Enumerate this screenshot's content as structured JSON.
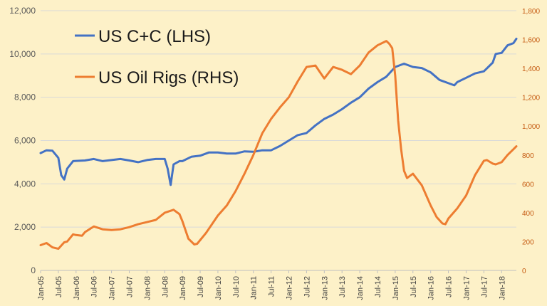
{
  "chart_data": {
    "type": "line",
    "legend_position": "top-left",
    "grid": true,
    "x_tick_labels": [
      "Jan-05",
      "Jul-05",
      "Jan-06",
      "Jul-06",
      "Jan-07",
      "Jul-07",
      "Jan-08",
      "Jul-08",
      "Jan-09",
      "Jul-09",
      "Jan-10",
      "Jul-10",
      "Jan-11",
      "Jul-11",
      "Jan-12",
      "Jul-12",
      "Jan-13",
      "Jul-13",
      "Jan-14",
      "Jul-14",
      "Jan-15",
      "Jul-15",
      "Jan-16",
      "Jul-16",
      "Jan-17",
      "Jul-17",
      "Jan-18"
    ],
    "y_left": {
      "min": 0,
      "max": 12000,
      "ticks": [
        "0",
        "2,000",
        "4,000",
        "6,000",
        "8,000",
        "10,000",
        "12,000"
      ]
    },
    "y_right": {
      "min": 0,
      "max": 1800,
      "ticks": [
        "0",
        "200",
        "400",
        "600",
        "800",
        "1,000",
        "1,200",
        "1,400",
        "1,600",
        "1,800"
      ]
    },
    "series": [
      {
        "name": "US C+C (LHS)",
        "axis": "left",
        "color": "#4472c4",
        "points": [
          [
            "Jan-05",
            5420
          ],
          [
            "Mar-05",
            5550
          ],
          [
            "May-05",
            5530
          ],
          [
            "Jul-05",
            5200
          ],
          [
            "Aug-05",
            4400
          ],
          [
            "Sep-05",
            4200
          ],
          [
            "Oct-05",
            4700
          ],
          [
            "Dec-05",
            5050
          ],
          [
            "Jan-06",
            5060
          ],
          [
            "Apr-06",
            5080
          ],
          [
            "Jul-06",
            5150
          ],
          [
            "Oct-06",
            5050
          ],
          [
            "Jan-07",
            5100
          ],
          [
            "Apr-07",
            5150
          ],
          [
            "Jul-07",
            5080
          ],
          [
            "Oct-07",
            5000
          ],
          [
            "Jan-08",
            5100
          ],
          [
            "Apr-08",
            5150
          ],
          [
            "Jul-08",
            5150
          ],
          [
            "Aug-08",
            4700
          ],
          [
            "Sep-08",
            3950
          ],
          [
            "Oct-08",
            4900
          ],
          [
            "Dec-08",
            5050
          ],
          [
            "Jan-09",
            5050
          ],
          [
            "Apr-09",
            5250
          ],
          [
            "Jul-09",
            5300
          ],
          [
            "Oct-09",
            5450
          ],
          [
            "Jan-10",
            5450
          ],
          [
            "Apr-10",
            5400
          ],
          [
            "Jul-10",
            5400
          ],
          [
            "Oct-10",
            5500
          ],
          [
            "Jan-11",
            5480
          ],
          [
            "Apr-11",
            5550
          ],
          [
            "Jul-11",
            5550
          ],
          [
            "Oct-11",
            5750
          ],
          [
            "Jan-12",
            6000
          ],
          [
            "Apr-12",
            6250
          ],
          [
            "Jul-12",
            6350
          ],
          [
            "Oct-12",
            6700
          ],
          [
            "Jan-13",
            7000
          ],
          [
            "Apr-13",
            7200
          ],
          [
            "Jul-13",
            7450
          ],
          [
            "Oct-13",
            7750
          ],
          [
            "Jan-14",
            8000
          ],
          [
            "Apr-14",
            8400
          ],
          [
            "Jul-14",
            8700
          ],
          [
            "Oct-14",
            8950
          ],
          [
            "Jan-15",
            9400
          ],
          [
            "Apr-15",
            9550
          ],
          [
            "Jul-15",
            9400
          ],
          [
            "Oct-15",
            9350
          ],
          [
            "Jan-16",
            9150
          ],
          [
            "Apr-16",
            8800
          ],
          [
            "Jul-16",
            8650
          ],
          [
            "Sep-16",
            8550
          ],
          [
            "Oct-16",
            8700
          ],
          [
            "Jan-17",
            8900
          ],
          [
            "Apr-17",
            9100
          ],
          [
            "Jul-17",
            9200
          ],
          [
            "Oct-17",
            9600
          ],
          [
            "Nov-17",
            10000
          ],
          [
            "Jan-18",
            10050
          ],
          [
            "Mar-18",
            10400
          ],
          [
            "May-18",
            10500
          ],
          [
            "Jun-18",
            10700
          ]
        ]
      },
      {
        "name": "US Oil Rigs (RHS)",
        "axis": "right",
        "color": "#ed7d31",
        "points": [
          [
            "Jan-05",
            175
          ],
          [
            "Mar-05",
            190
          ],
          [
            "May-05",
            160
          ],
          [
            "Jul-05",
            150
          ],
          [
            "Sep-05",
            195
          ],
          [
            "Oct-05",
            200
          ],
          [
            "Dec-05",
            250
          ],
          [
            "Jan-06",
            245
          ],
          [
            "Mar-06",
            240
          ],
          [
            "Apr-06",
            265
          ],
          [
            "Jul-06",
            305
          ],
          [
            "Oct-06",
            285
          ],
          [
            "Jan-07",
            280
          ],
          [
            "Apr-07",
            285
          ],
          [
            "Jul-07",
            300
          ],
          [
            "Oct-07",
            320
          ],
          [
            "Jan-08",
            335
          ],
          [
            "Apr-08",
            350
          ],
          [
            "Jul-08",
            400
          ],
          [
            "Oct-08",
            420
          ],
          [
            "Dec-08",
            390
          ],
          [
            "Jan-09",
            340
          ],
          [
            "Mar-09",
            220
          ],
          [
            "May-09",
            180
          ],
          [
            "Jun-09",
            185
          ],
          [
            "Sep-09",
            260
          ],
          [
            "Jan-10",
            380
          ],
          [
            "Apr-10",
            450
          ],
          [
            "Jul-10",
            550
          ],
          [
            "Oct-10",
            670
          ],
          [
            "Jan-11",
            800
          ],
          [
            "Apr-11",
            950
          ],
          [
            "Jul-11",
            1050
          ],
          [
            "Oct-11",
            1130
          ],
          [
            "Jan-12",
            1200
          ],
          [
            "Apr-12,",
            1310
          ],
          [
            "Jul-12",
            1410
          ],
          [
            "Oct-12",
            1420
          ],
          [
            "Jan-13",
            1330
          ],
          [
            "Apr-13",
            1410
          ],
          [
            "Jul-13",
            1390
          ],
          [
            "Oct-13",
            1360
          ],
          [
            "Jan-14",
            1420
          ],
          [
            "Apr-14",
            1510
          ],
          [
            "Jul-14",
            1560
          ],
          [
            "Oct-14",
            1590
          ],
          [
            "Nov-14",
            1570
          ],
          [
            "Dec-14",
            1540
          ],
          [
            "Jan-15",
            1350
          ],
          [
            "Feb-15",
            1040
          ],
          [
            "Mar-15",
            840
          ],
          [
            "Apr-15",
            690
          ],
          [
            "May-15",
            640
          ],
          [
            "Jul-15",
            670
          ],
          [
            "Oct-15",
            590
          ],
          [
            "Jan-16",
            450
          ],
          [
            "Mar-16",
            370
          ],
          [
            "May-16",
            325
          ],
          [
            "Jun-16",
            320
          ],
          [
            "Jul-16",
            360
          ],
          [
            "Oct-16",
            430
          ],
          [
            "Jan-17",
            520
          ],
          [
            "Apr-17",
            660
          ],
          [
            "Jul-17",
            760
          ],
          [
            "Aug-17",
            765
          ],
          [
            "Oct-17",
            740
          ],
          [
            "Nov-17",
            735
          ],
          [
            "Jan-18",
            750
          ],
          [
            "Mar-18",
            800
          ],
          [
            "May-18",
            840
          ],
          [
            "Jun-18",
            860
          ]
        ]
      }
    ]
  }
}
